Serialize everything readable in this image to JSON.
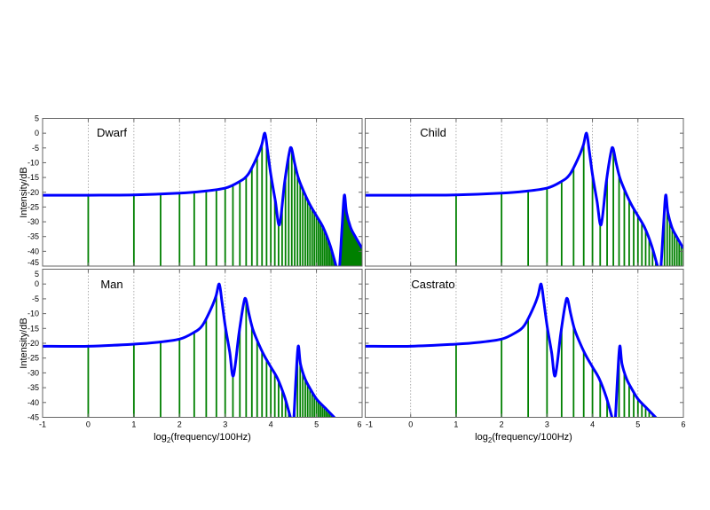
{
  "chart_data": [
    {
      "type": "bar",
      "title": "Dwarf",
      "ylabel": "Intensity/dB",
      "xlabel": "",
      "xlim": [
        -1,
        6
      ],
      "ylim": [
        -45,
        5
      ],
      "xticks": [
        -1,
        0,
        1,
        2,
        3,
        4,
        5,
        6
      ],
      "yticks": [
        5,
        0,
        -5,
        -10,
        -15,
        -20,
        -25,
        -30,
        -35,
        -40,
        -45
      ],
      "show_xtick_labels": false,
      "show_ytick_labels": true,
      "grid": "vertical dotted at integer x",
      "fundamental_hz": 100,
      "envelope": [
        [
          -1,
          -21
        ],
        [
          0,
          -21
        ],
        [
          1,
          -20.9
        ],
        [
          2,
          -20.3
        ],
        [
          2.5,
          -19.7
        ],
        [
          3,
          -18.6
        ],
        [
          3.3,
          -16.5
        ],
        [
          3.5,
          -14
        ],
        [
          3.7,
          -8
        ],
        [
          3.8,
          -4
        ],
        [
          3.87,
          0
        ],
        [
          3.93,
          -6
        ],
        [
          4.0,
          -14
        ],
        [
          4.1,
          -23
        ],
        [
          4.19,
          -31
        ],
        [
          4.3,
          -17
        ],
        [
          4.4,
          -7
        ],
        [
          4.45,
          -5
        ],
        [
          4.52,
          -10
        ],
        [
          4.6,
          -15
        ],
        [
          4.7,
          -19
        ],
        [
          4.85,
          -24
        ],
        [
          5.0,
          -28
        ],
        [
          5.15,
          -32
        ],
        [
          5.3,
          -38
        ],
        [
          5.43,
          -45
        ],
        [
          5.49,
          -48
        ],
        [
          5.56,
          -32
        ],
        [
          5.61,
          -21
        ],
        [
          5.66,
          -27
        ],
        [
          5.75,
          -32
        ],
        [
          5.85,
          -35
        ],
        [
          6,
          -39
        ]
      ]
    },
    {
      "type": "bar",
      "title": "Child",
      "ylabel": "",
      "xlabel": "",
      "xlim": [
        -1,
        6
      ],
      "ylim": [
        -45,
        5
      ],
      "xticks": [
        -1,
        0,
        1,
        2,
        3,
        4,
        5,
        6
      ],
      "yticks": [
        5,
        0,
        -5,
        -10,
        -15,
        -20,
        -25,
        -30,
        -35,
        -40,
        -45
      ],
      "show_xtick_labels": false,
      "show_ytick_labels": false,
      "grid": "vertical dotted at integer x",
      "fundamental_hz": 200,
      "envelope": [
        [
          -1,
          -21
        ],
        [
          0,
          -21
        ],
        [
          1,
          -20.9
        ],
        [
          2,
          -20.3
        ],
        [
          2.5,
          -19.7
        ],
        [
          3,
          -18.6
        ],
        [
          3.3,
          -16.5
        ],
        [
          3.5,
          -14
        ],
        [
          3.7,
          -8
        ],
        [
          3.8,
          -4
        ],
        [
          3.87,
          0
        ],
        [
          3.93,
          -6
        ],
        [
          4.0,
          -14
        ],
        [
          4.1,
          -23
        ],
        [
          4.19,
          -31
        ],
        [
          4.3,
          -17
        ],
        [
          4.4,
          -7
        ],
        [
          4.45,
          -5
        ],
        [
          4.52,
          -10
        ],
        [
          4.6,
          -15
        ],
        [
          4.7,
          -19
        ],
        [
          4.85,
          -24
        ],
        [
          5.0,
          -28
        ],
        [
          5.15,
          -32
        ],
        [
          5.3,
          -38
        ],
        [
          5.43,
          -45
        ],
        [
          5.49,
          -48
        ],
        [
          5.56,
          -32
        ],
        [
          5.61,
          -21
        ],
        [
          5.66,
          -27
        ],
        [
          5.75,
          -32
        ],
        [
          5.85,
          -35
        ],
        [
          6,
          -39
        ]
      ]
    },
    {
      "type": "bar",
      "title": "Man",
      "ylabel": "Intensity/dB",
      "xlabel": "log2(frequency/100Hz)",
      "xlim": [
        -1,
        6
      ],
      "ylim": [
        -45,
        5
      ],
      "xticks": [
        -1,
        0,
        1,
        2,
        3,
        4,
        5,
        6
      ],
      "yticks": [
        5,
        0,
        -5,
        -10,
        -15,
        -20,
        -25,
        -30,
        -35,
        -40,
        -45
      ],
      "show_xtick_labels": true,
      "show_ytick_labels": true,
      "grid": "vertical dotted at integer x",
      "fundamental_hz": 100,
      "envelope": [
        [
          -1,
          -21
        ],
        [
          0,
          -21
        ],
        [
          1,
          -20.3
        ],
        [
          1.5,
          -19.7
        ],
        [
          2,
          -18.6
        ],
        [
          2.3,
          -16.5
        ],
        [
          2.5,
          -14
        ],
        [
          2.7,
          -8
        ],
        [
          2.8,
          -4
        ],
        [
          2.87,
          0
        ],
        [
          2.93,
          -6
        ],
        [
          3.0,
          -14
        ],
        [
          3.1,
          -23
        ],
        [
          3.18,
          -31
        ],
        [
          3.3,
          -17
        ],
        [
          3.4,
          -7
        ],
        [
          3.45,
          -5
        ],
        [
          3.52,
          -10
        ],
        [
          3.6,
          -15
        ],
        [
          3.7,
          -19
        ],
        [
          3.85,
          -24
        ],
        [
          4.0,
          -28
        ],
        [
          4.15,
          -32
        ],
        [
          4.3,
          -38
        ],
        [
          4.43,
          -45
        ],
        [
          4.49,
          -48
        ],
        [
          4.55,
          -32
        ],
        [
          4.6,
          -21
        ],
        [
          4.65,
          -27
        ],
        [
          4.75,
          -32
        ],
        [
          4.85,
          -35
        ],
        [
          5.0,
          -38.8
        ],
        [
          5.2,
          -42
        ],
        [
          5.39,
          -45
        ],
        [
          5.45,
          -46
        ]
      ]
    },
    {
      "type": "bar",
      "title": "Castrato",
      "ylabel": "",
      "xlabel": "log2(frequency/100Hz)",
      "xlim": [
        -1,
        6
      ],
      "ylim": [
        -45,
        5
      ],
      "xticks": [
        -1,
        0,
        1,
        2,
        3,
        4,
        5,
        6
      ],
      "yticks": [
        5,
        0,
        -5,
        -10,
        -15,
        -20,
        -25,
        -30,
        -35,
        -40,
        -45
      ],
      "show_xtick_labels": true,
      "show_ytick_labels": false,
      "grid": "vertical dotted at integer x",
      "fundamental_hz": 200,
      "envelope": [
        [
          -1,
          -21
        ],
        [
          0,
          -21
        ],
        [
          1,
          -20.3
        ],
        [
          1.5,
          -19.7
        ],
        [
          2,
          -18.6
        ],
        [
          2.3,
          -16.5
        ],
        [
          2.5,
          -14
        ],
        [
          2.7,
          -8
        ],
        [
          2.8,
          -4
        ],
        [
          2.87,
          0
        ],
        [
          2.93,
          -6
        ],
        [
          3.0,
          -14
        ],
        [
          3.1,
          -23
        ],
        [
          3.18,
          -31
        ],
        [
          3.3,
          -17
        ],
        [
          3.4,
          -7
        ],
        [
          3.45,
          -5
        ],
        [
          3.52,
          -10
        ],
        [
          3.6,
          -15
        ],
        [
          3.7,
          -19
        ],
        [
          3.85,
          -24
        ],
        [
          4.0,
          -28
        ],
        [
          4.15,
          -32
        ],
        [
          4.3,
          -38
        ],
        [
          4.43,
          -45
        ],
        [
          4.49,
          -48
        ],
        [
          4.55,
          -32
        ],
        [
          4.6,
          -21
        ],
        [
          4.65,
          -27
        ],
        [
          4.75,
          -32
        ],
        [
          4.85,
          -35
        ],
        [
          5.0,
          -38.8
        ],
        [
          5.2,
          -42
        ],
        [
          5.39,
          -45
        ],
        [
          5.45,
          -46
        ]
      ]
    }
  ],
  "colors": {
    "envelope": "#0000ff",
    "harmonics": "#008000",
    "grid": "#999999",
    "axes": "#666666"
  }
}
